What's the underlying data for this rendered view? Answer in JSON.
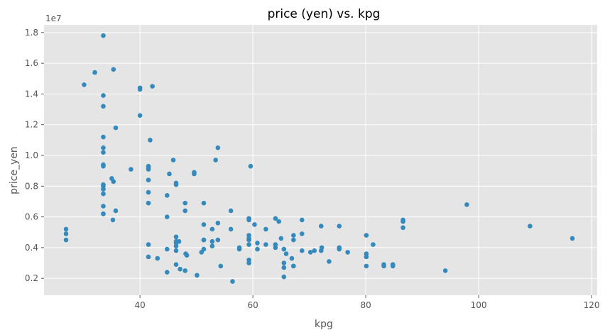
{
  "chart_data": {
    "type": "scatter",
    "title": "price (yen) vs. kpg",
    "xlabel": "kpg",
    "ylabel": "price_yen",
    "y_offset_label": "1e7",
    "xlim": [
      23,
      121
    ],
    "ylim": [
      900000,
      18500000
    ],
    "xticks": [
      40,
      60,
      80,
      100,
      120
    ],
    "yticks": [
      2000000,
      4000000,
      6000000,
      8000000,
      10000000,
      12000000,
      14000000,
      16000000,
      18000000
    ],
    "ytick_labels": [
      "0.2",
      "0.4",
      "0.6",
      "0.8",
      "1.0",
      "1.2",
      "1.4",
      "1.6",
      "1.8"
    ],
    "grid": true,
    "style": "ggplot",
    "color": "#348abd",
    "points": [
      [
        26.9,
        5200000
      ],
      [
        26.9,
        4900000
      ],
      [
        26.9,
        4500000
      ],
      [
        30.1,
        14600000
      ],
      [
        32.0,
        15400000
      ],
      [
        33.5,
        17800000
      ],
      [
        33.5,
        13900000
      ],
      [
        33.5,
        13200000
      ],
      [
        33.5,
        11200000
      ],
      [
        33.5,
        10500000
      ],
      [
        33.5,
        10200000
      ],
      [
        33.5,
        9400000
      ],
      [
        33.5,
        9300000
      ],
      [
        33.5,
        8100000
      ],
      [
        33.5,
        8000000
      ],
      [
        33.5,
        7800000
      ],
      [
        33.5,
        7500000
      ],
      [
        33.5,
        6700000
      ],
      [
        33.5,
        6200000
      ],
      [
        33.5,
        6200000
      ],
      [
        35.0,
        8500000
      ],
      [
        35.2,
        5800000
      ],
      [
        35.3,
        8300000
      ],
      [
        35.3,
        15600000
      ],
      [
        35.7,
        11800000
      ],
      [
        35.7,
        6400000
      ],
      [
        38.4,
        9100000
      ],
      [
        40.0,
        14400000
      ],
      [
        40.0,
        14300000
      ],
      [
        40.0,
        12600000
      ],
      [
        41.5,
        9300000
      ],
      [
        41.5,
        9200000
      ],
      [
        41.5,
        9100000
      ],
      [
        41.5,
        8400000
      ],
      [
        41.5,
        7600000
      ],
      [
        41.5,
        6900000
      ],
      [
        41.5,
        4200000
      ],
      [
        41.5,
        3400000
      ],
      [
        41.8,
        11000000
      ],
      [
        42.2,
        14500000
      ],
      [
        43.1,
        3300000
      ],
      [
        44.8,
        7400000
      ],
      [
        44.8,
        6000000
      ],
      [
        44.8,
        3900000
      ],
      [
        44.8,
        2400000
      ],
      [
        45.2,
        8800000
      ],
      [
        45.9,
        9700000
      ],
      [
        46.4,
        8200000
      ],
      [
        46.4,
        8100000
      ],
      [
        46.4,
        4700000
      ],
      [
        46.4,
        4400000
      ],
      [
        46.4,
        4300000
      ],
      [
        46.4,
        4100000
      ],
      [
        46.4,
        3800000
      ],
      [
        46.4,
        2900000
      ],
      [
        46.9,
        4400000
      ],
      [
        47.1,
        2600000
      ],
      [
        48.0,
        6900000
      ],
      [
        48.0,
        6400000
      ],
      [
        48.0,
        2500000
      ],
      [
        48.1,
        3600000
      ],
      [
        48.3,
        3500000
      ],
      [
        49.6,
        8900000
      ],
      [
        49.6,
        8800000
      ],
      [
        50.1,
        2200000
      ],
      [
        50.9,
        3700000
      ],
      [
        51.3,
        6900000
      ],
      [
        51.3,
        5500000
      ],
      [
        51.3,
        4500000
      ],
      [
        51.3,
        4500000
      ],
      [
        51.3,
        3900000
      ],
      [
        52.8,
        5200000
      ],
      [
        52.8,
        4400000
      ],
      [
        52.8,
        4100000
      ],
      [
        53.4,
        9700000
      ],
      [
        53.8,
        10500000
      ],
      [
        53.8,
        5600000
      ],
      [
        53.8,
        4500000
      ],
      [
        54.3,
        2800000
      ],
      [
        56.1,
        6400000
      ],
      [
        56.1,
        5200000
      ],
      [
        56.4,
        1800000
      ],
      [
        57.6,
        4000000
      ],
      [
        57.6,
        3900000
      ],
      [
        59.3,
        5900000
      ],
      [
        59.3,
        5800000
      ],
      [
        59.3,
        4800000
      ],
      [
        59.3,
        4600000
      ],
      [
        59.3,
        4500000
      ],
      [
        59.3,
        4200000
      ],
      [
        59.3,
        3200000
      ],
      [
        59.3,
        3000000
      ],
      [
        59.6,
        9300000
      ],
      [
        60.3,
        5500000
      ],
      [
        60.8,
        4300000
      ],
      [
        60.8,
        3900000
      ],
      [
        62.3,
        5200000
      ],
      [
        62.3,
        4200000
      ],
      [
        64.0,
        5900000
      ],
      [
        64.0,
        4200000
      ],
      [
        64.0,
        4000000
      ],
      [
        64.6,
        5700000
      ],
      [
        65.0,
        4600000
      ],
      [
        65.5,
        3900000
      ],
      [
        65.5,
        3000000
      ],
      [
        65.5,
        2700000
      ],
      [
        65.5,
        2100000
      ],
      [
        65.9,
        3600000
      ],
      [
        66.9,
        3300000
      ],
      [
        67.2,
        4800000
      ],
      [
        67.2,
        4500000
      ],
      [
        67.2,
        2800000
      ],
      [
        67.2,
        2800000
      ],
      [
        68.7,
        5800000
      ],
      [
        68.7,
        4900000
      ],
      [
        68.7,
        3800000
      ],
      [
        70.2,
        3700000
      ],
      [
        70.9,
        3800000
      ],
      [
        72.1,
        5400000
      ],
      [
        72.1,
        3800000
      ],
      [
        72.2,
        4000000
      ],
      [
        73.5,
        3100000
      ],
      [
        75.3,
        5400000
      ],
      [
        75.3,
        4000000
      ],
      [
        75.3,
        3900000
      ],
      [
        76.8,
        3700000
      ],
      [
        80.1,
        4800000
      ],
      [
        80.1,
        3600000
      ],
      [
        80.1,
        3400000
      ],
      [
        80.1,
        2800000
      ],
      [
        81.3,
        4200000
      ],
      [
        83.2,
        2900000
      ],
      [
        83.2,
        2800000
      ],
      [
        84.8,
        2800000
      ],
      [
        84.8,
        2900000
      ],
      [
        86.6,
        5800000
      ],
      [
        86.6,
        5700000
      ],
      [
        86.6,
        5300000
      ],
      [
        94.1,
        2500000
      ],
      [
        97.9,
        6800000
      ],
      [
        109.1,
        5400000
      ],
      [
        116.6,
        4600000
      ]
    ]
  }
}
